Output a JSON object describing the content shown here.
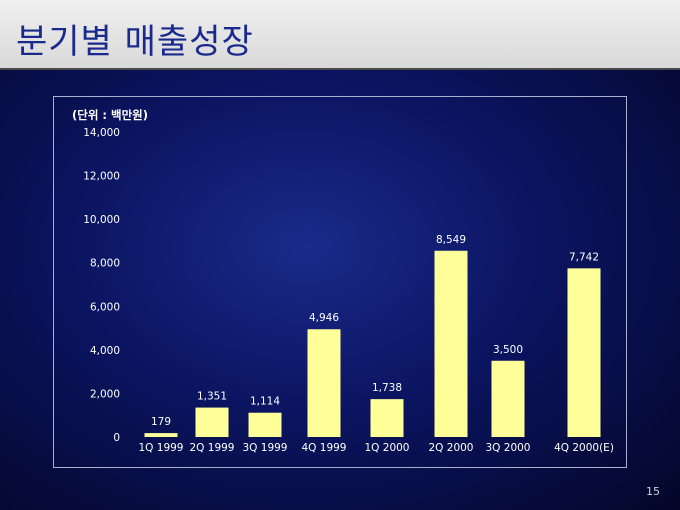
{
  "header": {
    "title": "분기별 매출성장"
  },
  "page": {
    "number": "15"
  },
  "colors": {
    "bar": "#ffff99",
    "text": "#ffffff",
    "background": "#0b1460"
  },
  "chart_data": {
    "type": "bar",
    "unit_label": "(단위 : 백만원)",
    "categories": [
      "1Q 1999",
      "2Q 1999",
      "3Q 1999",
      "4Q 1999",
      "1Q 2000",
      "2Q 2000",
      "3Q 2000",
      "4Q 2000(E)"
    ],
    "values": [
      179,
      1351,
      1114,
      4946,
      1738,
      8549,
      3500,
      7742
    ],
    "data_labels": [
      "179",
      "1,351",
      "1,114",
      "4,946",
      "1,738",
      "8,549",
      "3,500",
      "7,742"
    ],
    "y_ticks": [
      {
        "value": 0,
        "label": "0"
      },
      {
        "value": 2000,
        "label": "2,000"
      },
      {
        "value": 4000,
        "label": "4,000"
      },
      {
        "value": 6000,
        "label": "6,000"
      },
      {
        "value": 8000,
        "label": "8,000"
      },
      {
        "value": 10000,
        "label": "10,000"
      },
      {
        "value": 12000,
        "label": "12,000"
      },
      {
        "value": 14000,
        "label": "14,000"
      }
    ],
    "ylim": [
      0,
      14000
    ],
    "grid": false,
    "legend": "none"
  }
}
